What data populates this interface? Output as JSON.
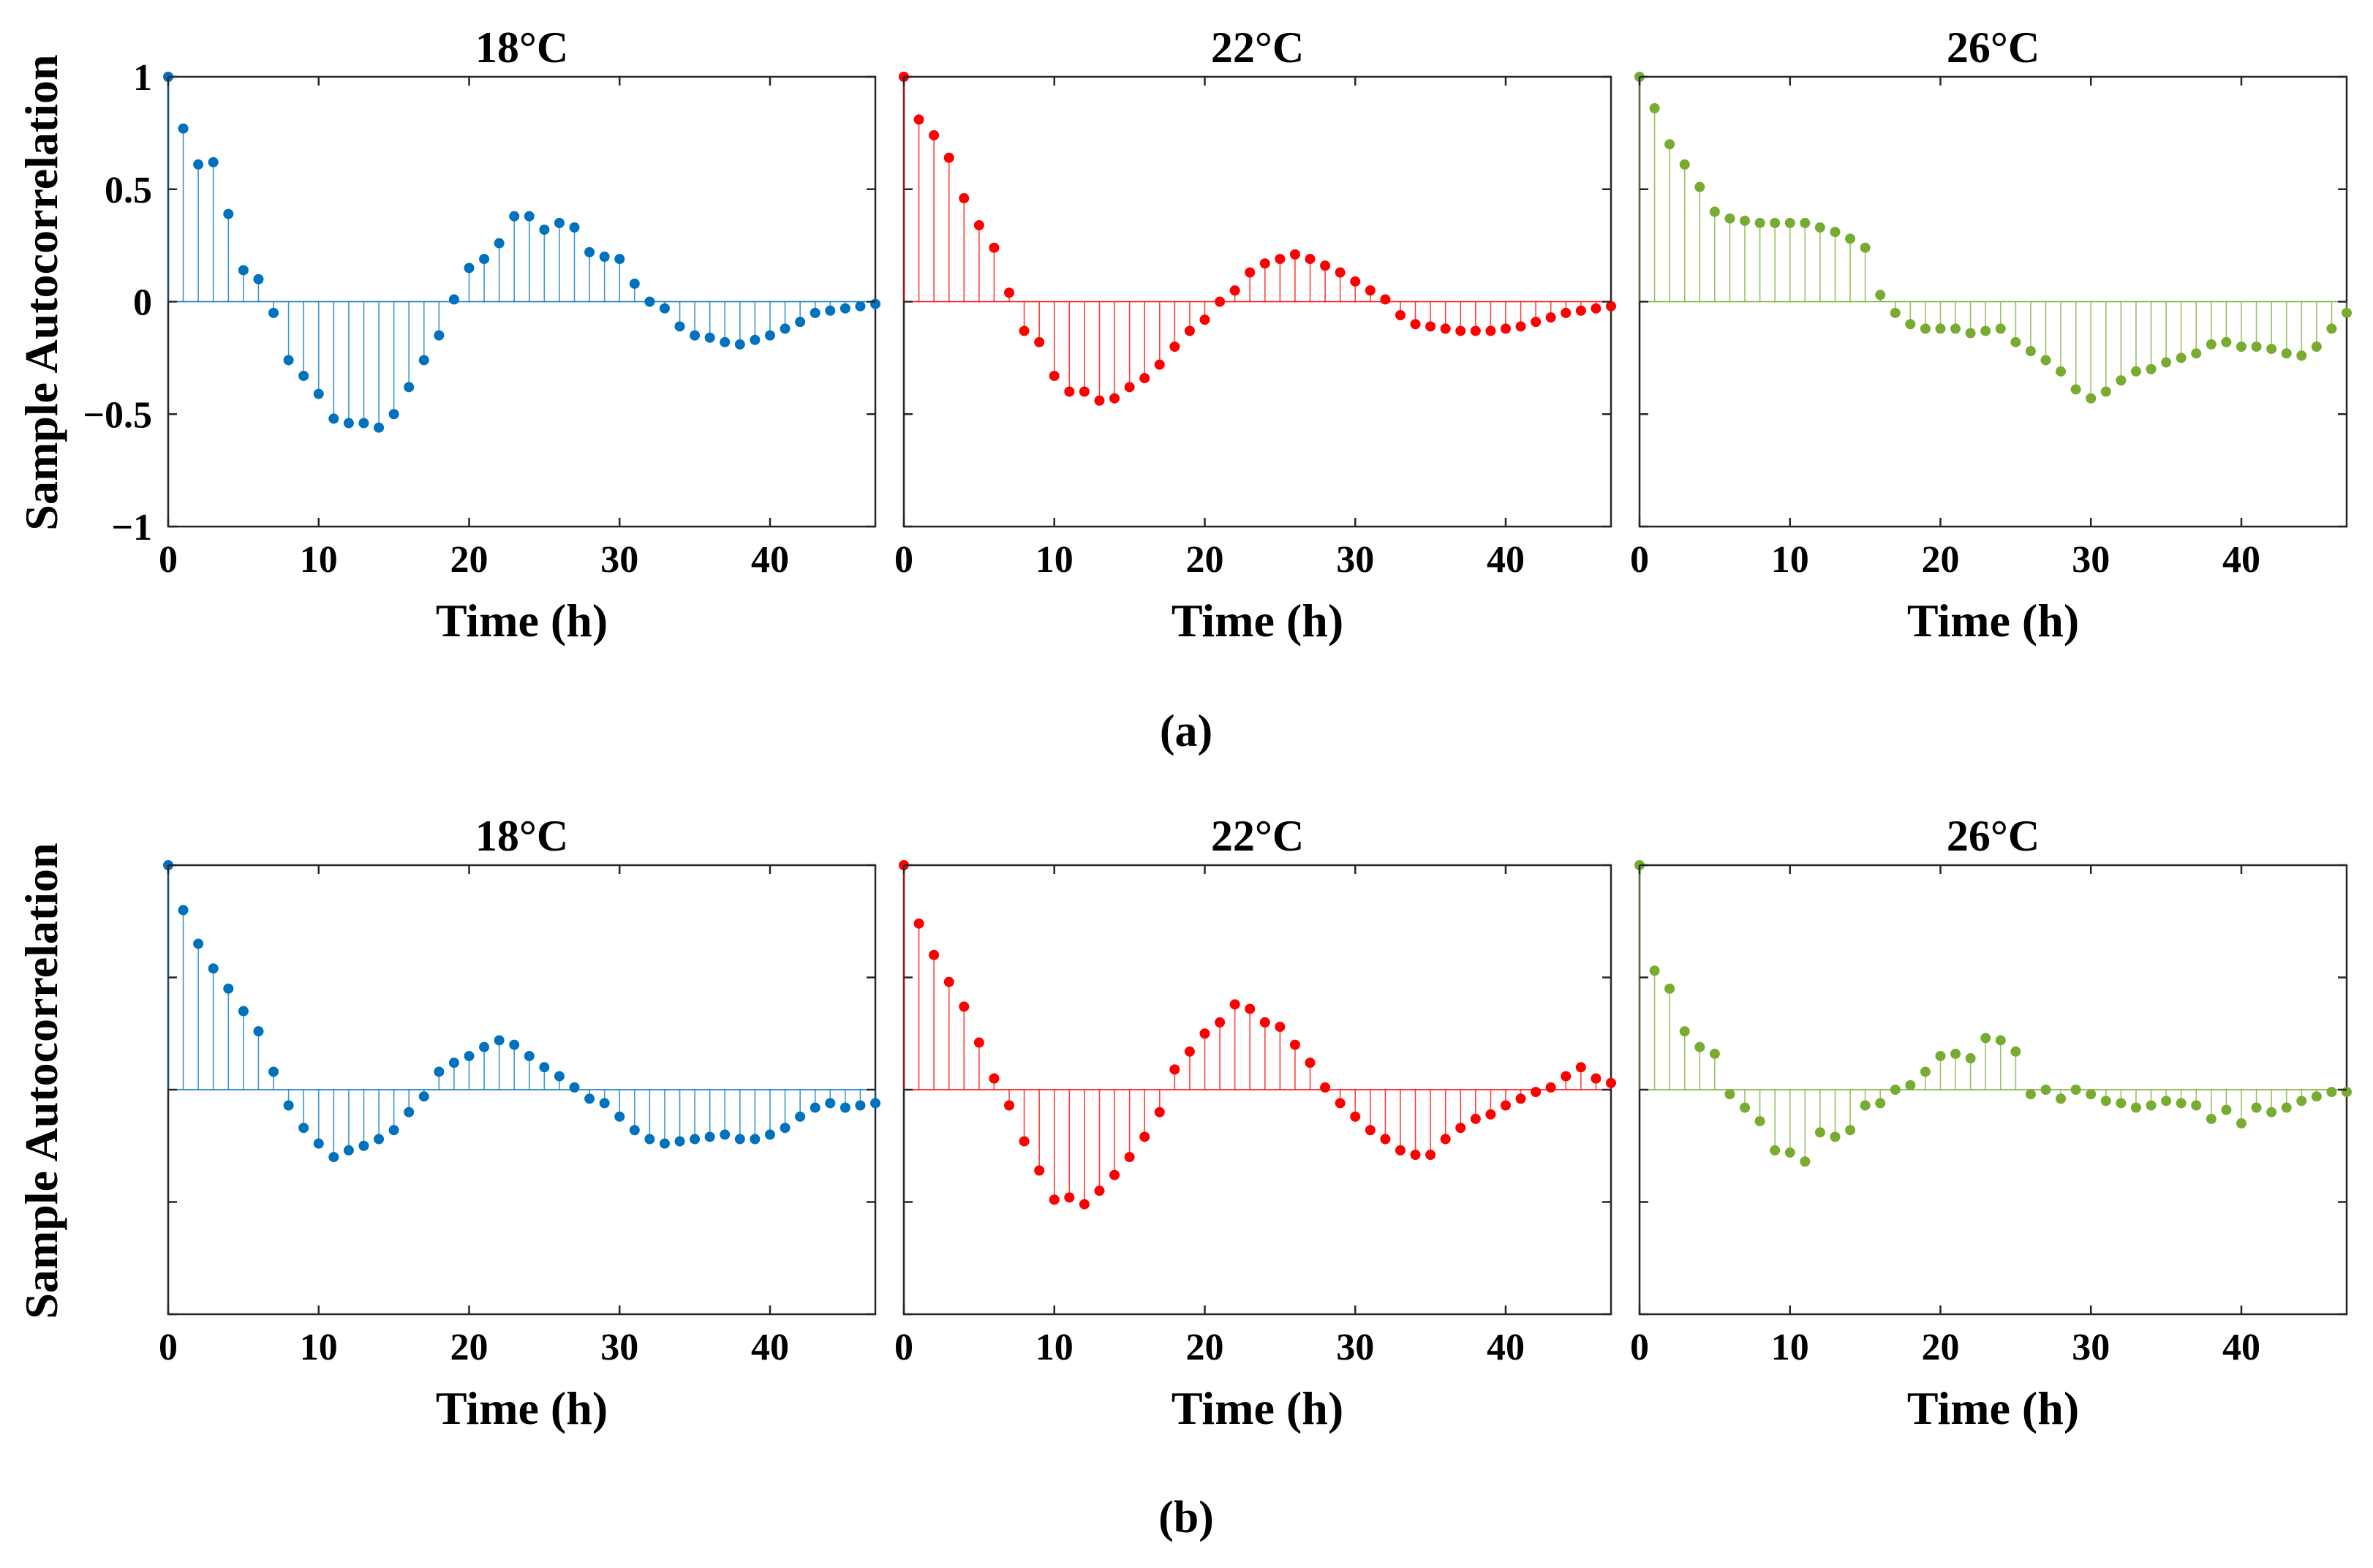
{
  "figure": {
    "ylabel": "Sample Autocorrelation",
    "captions": [
      "(a)",
      "(b)"
    ]
  },
  "chart_data": [
    {
      "type": "stem",
      "group": "a",
      "title": "18°C",
      "xlabel": "Time (h)",
      "ylabel": "Sample Autocorrelation",
      "xlim": [
        0,
        47
      ],
      "ylim": [
        -1,
        1
      ],
      "xticks": [
        0,
        10,
        20,
        30,
        40
      ],
      "yticks": [
        1,
        0.5,
        0,
        -0.5,
        -1
      ],
      "ytick_labels": [
        "1",
        "0.5",
        "0",
        "−0.5",
        "−1"
      ],
      "color": "#0072BD",
      "x": [
        0,
        1,
        2,
        3,
        4,
        5,
        6,
        7,
        8,
        9,
        10,
        11,
        12,
        13,
        14,
        15,
        16,
        17,
        18,
        19,
        20,
        21,
        22,
        23,
        24,
        25,
        26,
        27,
        28,
        29,
        30,
        31,
        32,
        33,
        34,
        35,
        36,
        37,
        38,
        39,
        40,
        41,
        42,
        43,
        44,
        45,
        46,
        47
      ],
      "y": [
        1.0,
        0.77,
        0.61,
        0.62,
        0.39,
        0.14,
        0.1,
        -0.05,
        -0.26,
        -0.33,
        -0.41,
        -0.52,
        -0.54,
        -0.54,
        -0.56,
        -0.5,
        -0.38,
        -0.26,
        -0.15,
        0.01,
        0.15,
        0.19,
        0.26,
        0.38,
        0.38,
        0.32,
        0.35,
        0.33,
        0.22,
        0.2,
        0.19,
        0.08,
        0.0,
        -0.03,
        -0.11,
        -0.15,
        -0.16,
        -0.18,
        -0.19,
        -0.17,
        -0.15,
        -0.12,
        -0.09,
        -0.05,
        -0.04,
        -0.03,
        -0.02,
        -0.01
      ]
    },
    {
      "type": "stem",
      "group": "a",
      "title": "22°C",
      "xlabel": "Time (h)",
      "xlim": [
        0,
        47
      ],
      "ylim": [
        -1,
        1
      ],
      "xticks": [
        0,
        10,
        20,
        30,
        40
      ],
      "yticks": [
        1,
        0.5,
        0,
        -0.5,
        -1
      ],
      "color": "#FF0000",
      "x": [
        0,
        1,
        2,
        3,
        4,
        5,
        6,
        7,
        8,
        9,
        10,
        11,
        12,
        13,
        14,
        15,
        16,
        17,
        18,
        19,
        20,
        21,
        22,
        23,
        24,
        25,
        26,
        27,
        28,
        29,
        30,
        31,
        32,
        33,
        34,
        35,
        36,
        37,
        38,
        39,
        40,
        41,
        42,
        43,
        44,
        45,
        46,
        47
      ],
      "y": [
        1.0,
        0.81,
        0.74,
        0.64,
        0.46,
        0.34,
        0.24,
        0.04,
        -0.13,
        -0.18,
        -0.33,
        -0.4,
        -0.4,
        -0.44,
        -0.43,
        -0.38,
        -0.34,
        -0.28,
        -0.2,
        -0.13,
        -0.08,
        0.0,
        0.05,
        0.13,
        0.17,
        0.19,
        0.21,
        0.19,
        0.16,
        0.13,
        0.09,
        0.05,
        0.01,
        -0.06,
        -0.1,
        -0.11,
        -0.12,
        -0.13,
        -0.13,
        -0.13,
        -0.12,
        -0.11,
        -0.09,
        -0.07,
        -0.05,
        -0.04,
        -0.03,
        -0.02
      ]
    },
    {
      "type": "stem",
      "group": "a",
      "title": "26°C",
      "xlabel": "Time (h)",
      "xlim": [
        0,
        47
      ],
      "ylim": [
        -1,
        1
      ],
      "xticks": [
        0,
        10,
        20,
        30,
        40
      ],
      "yticks": [
        1,
        0.5,
        0,
        -0.5,
        -1
      ],
      "color": "#77AC30",
      "x": [
        0,
        1,
        2,
        3,
        4,
        5,
        6,
        7,
        8,
        9,
        10,
        11,
        12,
        13,
        14,
        15,
        16,
        17,
        18,
        19,
        20,
        21,
        22,
        23,
        24,
        25,
        26,
        27,
        28,
        29,
        30,
        31,
        32,
        33,
        34,
        35,
        36,
        37,
        38,
        39,
        40,
        41,
        42,
        43,
        44,
        45,
        46,
        47
      ],
      "y": [
        1.0,
        0.86,
        0.7,
        0.61,
        0.51,
        0.4,
        0.37,
        0.36,
        0.35,
        0.35,
        0.35,
        0.35,
        0.33,
        0.31,
        0.28,
        0.24,
        0.03,
        -0.05,
        -0.1,
        -0.12,
        -0.12,
        -0.12,
        -0.14,
        -0.13,
        -0.12,
        -0.18,
        -0.22,
        -0.26,
        -0.31,
        -0.39,
        -0.43,
        -0.4,
        -0.35,
        -0.31,
        -0.3,
        -0.27,
        -0.25,
        -0.23,
        -0.19,
        -0.18,
        -0.2,
        -0.2,
        -0.21,
        -0.23,
        -0.24,
        -0.2,
        -0.12,
        -0.05
      ]
    },
    {
      "type": "stem",
      "group": "b",
      "title": "18°C",
      "xlabel": "Time (h)",
      "ylabel": "Sample Autocorrelation",
      "xlim": [
        0,
        47
      ],
      "ylim": [
        -1,
        1
      ],
      "xticks": [
        0,
        10,
        20,
        30,
        40
      ],
      "yticks": [
        1,
        0.5,
        0,
        -0.5,
        -1
      ],
      "color": "#0072BD",
      "x": [
        0,
        1,
        2,
        3,
        4,
        5,
        6,
        7,
        8,
        9,
        10,
        11,
        12,
        13,
        14,
        15,
        16,
        17,
        18,
        19,
        20,
        21,
        22,
        23,
        24,
        25,
        26,
        27,
        28,
        29,
        30,
        31,
        32,
        33,
        34,
        35,
        36,
        37,
        38,
        39,
        40,
        41,
        42,
        43,
        44,
        45,
        46,
        47
      ],
      "y": [
        1.0,
        0.8,
        0.65,
        0.54,
        0.45,
        0.35,
        0.26,
        0.08,
        -0.07,
        -0.17,
        -0.24,
        -0.3,
        -0.27,
        -0.25,
        -0.22,
        -0.18,
        -0.1,
        -0.03,
        0.08,
        0.12,
        0.15,
        0.19,
        0.22,
        0.2,
        0.15,
        0.1,
        0.06,
        0.01,
        -0.04,
        -0.06,
        -0.12,
        -0.18,
        -0.22,
        -0.24,
        -0.23,
        -0.22,
        -0.21,
        -0.2,
        -0.22,
        -0.22,
        -0.2,
        -0.17,
        -0.12,
        -0.08,
        -0.06,
        -0.08,
        -0.07,
        -0.06
      ]
    },
    {
      "type": "stem",
      "group": "b",
      "title": "22°C",
      "xlabel": "Time (h)",
      "xlim": [
        0,
        47
      ],
      "ylim": [
        -1,
        1
      ],
      "xticks": [
        0,
        10,
        20,
        30,
        40
      ],
      "yticks": [
        1,
        0.5,
        0,
        -0.5,
        -1
      ],
      "color": "#FF0000",
      "x": [
        0,
        1,
        2,
        3,
        4,
        5,
        6,
        7,
        8,
        9,
        10,
        11,
        12,
        13,
        14,
        15,
        16,
        17,
        18,
        19,
        20,
        21,
        22,
        23,
        24,
        25,
        26,
        27,
        28,
        29,
        30,
        31,
        32,
        33,
        34,
        35,
        36,
        37,
        38,
        39,
        40,
        41,
        42,
        43,
        44,
        45,
        46,
        47
      ],
      "y": [
        1.0,
        0.74,
        0.6,
        0.48,
        0.37,
        0.21,
        0.05,
        -0.07,
        -0.23,
        -0.36,
        -0.49,
        -0.48,
        -0.51,
        -0.45,
        -0.38,
        -0.3,
        -0.21,
        -0.1,
        0.09,
        0.17,
        0.25,
        0.3,
        0.38,
        0.36,
        0.3,
        0.28,
        0.2,
        0.12,
        0.01,
        -0.06,
        -0.12,
        -0.18,
        -0.22,
        -0.27,
        -0.29,
        -0.29,
        -0.22,
        -0.17,
        -0.13,
        -0.11,
        -0.07,
        -0.04,
        -0.01,
        0.01,
        0.06,
        0.1,
        0.05,
        0.03
      ]
    },
    {
      "type": "stem",
      "group": "b",
      "title": "26°C",
      "xlabel": "Time (h)",
      "xlim": [
        0,
        47
      ],
      "ylim": [
        -1,
        1
      ],
      "xticks": [
        0,
        10,
        20,
        30,
        40
      ],
      "yticks": [
        1,
        0.5,
        0,
        -0.5,
        -1
      ],
      "color": "#77AC30",
      "x": [
        0,
        1,
        2,
        3,
        4,
        5,
        6,
        7,
        8,
        9,
        10,
        11,
        12,
        13,
        14,
        15,
        16,
        17,
        18,
        19,
        20,
        21,
        22,
        23,
        24,
        25,
        26,
        27,
        28,
        29,
        30,
        31,
        32,
        33,
        34,
        35,
        36,
        37,
        38,
        39,
        40,
        41,
        42,
        43,
        44,
        45,
        46,
        47
      ],
      "y": [
        1.0,
        0.53,
        0.45,
        0.26,
        0.19,
        0.16,
        -0.02,
        -0.08,
        -0.14,
        -0.27,
        -0.28,
        -0.32,
        -0.19,
        -0.21,
        -0.18,
        -0.07,
        -0.06,
        0.0,
        0.02,
        0.08,
        0.15,
        0.16,
        0.14,
        0.23,
        0.22,
        0.17,
        -0.02,
        0.0,
        -0.04,
        0.0,
        -0.02,
        -0.05,
        -0.06,
        -0.08,
        -0.07,
        -0.05,
        -0.06,
        -0.07,
        -0.13,
        -0.09,
        -0.15,
        -0.08,
        -0.1,
        -0.08,
        -0.05,
        -0.03,
        -0.01,
        -0.01
      ]
    }
  ]
}
